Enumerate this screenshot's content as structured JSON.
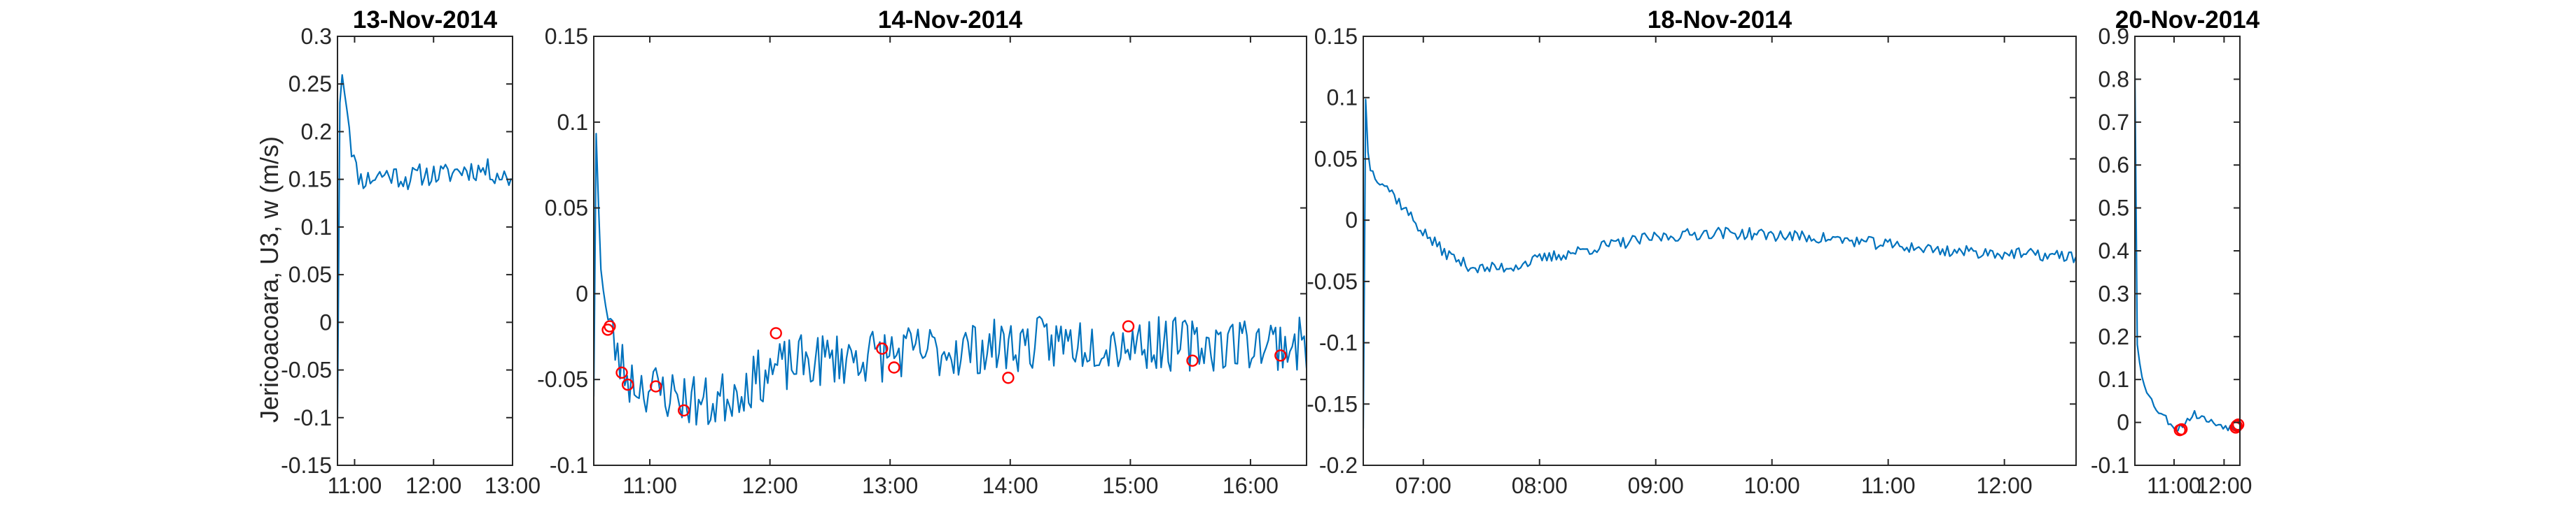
{
  "figure": {
    "ylabel": "Jericoacoara, U3, w (m/s)",
    "line_color": "#0072BD",
    "marker_color": "#FF0000"
  },
  "chart_data": [
    {
      "type": "line",
      "title": "13-Nov-2014",
      "x_unit": "time of day (HH:MM)",
      "xlim": [
        "10:47",
        "13:00"
      ],
      "ylim": [
        -0.15,
        0.3
      ],
      "xticks": [
        "11:00",
        "12:00",
        "13:00"
      ],
      "yticks": [
        -0.15,
        -0.1,
        -0.05,
        0,
        0.05,
        0.1,
        0.15,
        0.2,
        0.25,
        0.3
      ],
      "series": [
        {
          "x": [
            "10:47",
            "10:49",
            "10:52",
            "10:55",
            "10:58",
            "11:01",
            "11:05",
            "11:10",
            "11:20",
            "11:30",
            "11:40",
            "11:50",
            "12:00",
            "12:10",
            "12:20",
            "12:30",
            "12:40",
            "12:50",
            "12:59"
          ],
          "y": [
            -0.1,
            0.27,
            0.25,
            0.22,
            0.18,
            0.16,
            0.15,
            0.15,
            0.155,
            0.155,
            0.15,
            0.155,
            0.155,
            0.155,
            0.16,
            0.16,
            0.16,
            0.155,
            0.15
          ],
          "noise": 0.012,
          "seed": 11
        }
      ],
      "markers": []
    },
    {
      "type": "line",
      "title": "14-Nov-2014",
      "x_unit": "time of day (HH:MM)",
      "xlim": [
        "10:32",
        "16:28"
      ],
      "ylim": [
        -0.1,
        0.15
      ],
      "xticks": [
        "11:00",
        "12:00",
        "13:00",
        "14:00",
        "15:00",
        "16:00"
      ],
      "yticks": [
        -0.1,
        -0.05,
        0,
        0.05,
        0.1,
        0.15
      ],
      "series": [
        {
          "x": [
            "10:32",
            "10:33",
            "10:35",
            "10:38",
            "10:40",
            "10:45",
            "10:50",
            "11:00",
            "11:15",
            "11:30",
            "11:45",
            "12:00",
            "12:15",
            "12:30",
            "13:00",
            "13:30",
            "14:00",
            "14:30",
            "15:00",
            "15:30",
            "16:00",
            "16:28"
          ],
          "y": [
            -0.06,
            0.1,
            0.03,
            -0.01,
            -0.02,
            -0.04,
            -0.05,
            -0.055,
            -0.06,
            -0.065,
            -0.055,
            -0.045,
            -0.04,
            -0.038,
            -0.035,
            -0.033,
            -0.03,
            -0.028,
            -0.028,
            -0.03,
            -0.028,
            -0.03
          ],
          "noise": 0.016,
          "seed": 23
        }
      ],
      "markers": {
        "x": [
          "10:39",
          "10:40",
          "10:46",
          "10:49",
          "11:03",
          "11:17",
          "12:03",
          "12:56",
          "13:02",
          "13:59",
          "14:59",
          "15:31",
          "16:15"
        ],
        "y": [
          -0.021,
          -0.019,
          -0.046,
          -0.053,
          -0.054,
          -0.068,
          -0.023,
          -0.032,
          -0.043,
          -0.049,
          -0.019,
          -0.039,
          -0.036
        ]
      }
    },
    {
      "type": "line",
      "title": "18-Nov-2014",
      "x_unit": "time of day (HH:MM)",
      "xlim": [
        "06:29",
        "12:37"
      ],
      "ylim": [
        -0.2,
        0.15
      ],
      "xticks": [
        "07:00",
        "08:00",
        "09:00",
        "10:00",
        "11:00",
        "12:00"
      ],
      "yticks": [
        -0.2,
        -0.15,
        -0.1,
        -0.05,
        0,
        0.05,
        0.1,
        0.15
      ],
      "series": [
        {
          "x": [
            "06:29",
            "06:30",
            "06:31",
            "06:33",
            "06:40",
            "06:50",
            "07:00",
            "07:10",
            "07:20",
            "07:30",
            "07:45",
            "08:00",
            "08:30",
            "09:00",
            "09:30",
            "10:00",
            "10:30",
            "11:00",
            "11:30",
            "12:00",
            "12:37"
          ],
          "y": [
            -0.17,
            0.11,
            0.06,
            0.04,
            0.03,
            0.01,
            -0.01,
            -0.025,
            -0.035,
            -0.04,
            -0.038,
            -0.032,
            -0.022,
            -0.014,
            -0.01,
            -0.012,
            -0.015,
            -0.02,
            -0.025,
            -0.027,
            -0.03
          ],
          "noise": 0.005,
          "seed": 37
        }
      ],
      "markers": []
    },
    {
      "type": "line",
      "title": "20-Nov-2014",
      "x_unit": "time of day (HH:MM)",
      "xlim": [
        "10:13",
        "12:19"
      ],
      "ylim": [
        -0.1,
        0.9
      ],
      "xticks": [
        "11:00",
        "12:00"
      ],
      "yticks": [
        -0.1,
        0,
        0.1,
        0.2,
        0.3,
        0.4,
        0.5,
        0.6,
        0.7,
        0.8,
        0.9
      ],
      "series": [
        {
          "x": [
            "10:13",
            "10:14",
            "10:16",
            "10:20",
            "10:30",
            "10:40",
            "10:50",
            "11:00",
            "11:05",
            "11:15",
            "11:25",
            "11:35",
            "11:45",
            "11:55",
            "12:05",
            "12:15",
            "12:19"
          ],
          "y": [
            0.82,
            0.2,
            0.18,
            0.12,
            0.06,
            0.03,
            0.01,
            -0.01,
            -0.015,
            0.005,
            0.02,
            0.01,
            0.0,
            -0.005,
            -0.01,
            -0.015,
            -0.01
          ],
          "noise": 0.009,
          "seed": 53
        }
      ],
      "markers": {
        "x": [
          "11:07",
          "11:09",
          "12:14",
          "12:15",
          "12:17"
        ],
        "y": [
          -0.018,
          -0.016,
          -0.012,
          -0.008,
          -0.005
        ]
      }
    }
  ]
}
